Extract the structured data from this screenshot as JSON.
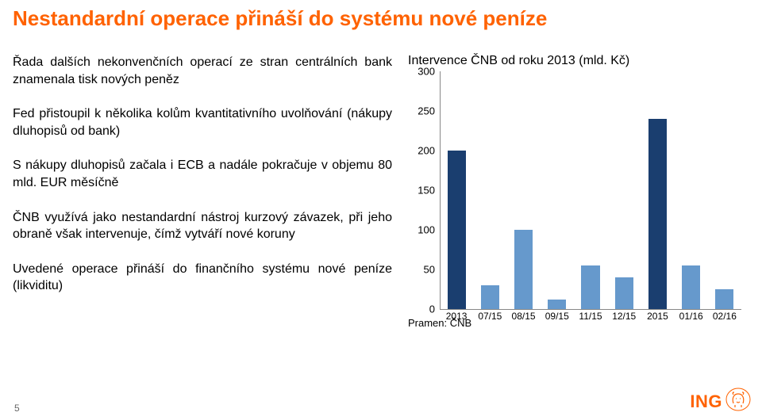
{
  "title": {
    "text": "Nestandardní operace přináší do systému nové peníze",
    "color": "#ff6200"
  },
  "body": {
    "p1": "Řada dalších nekonvenčních operací ze stran centrálních bank znamenala tisk nových peněz",
    "p2": "Fed přistoupil k několika kolům kvantitativního uvolňování (nákupy dluhopisů od bank)",
    "p3": "S nákupy dluhopisů začala i ECB a nadále pokračuje v objemu 80 mld. EUR měsíčně",
    "p4": "ČNB využívá jako nestandardní nástroj kurzový závazek, při jeho obraně však intervenuje, čímž vytváří nové koruny",
    "p5": "Uvedené operace přináší do finančního systému nové peníze (likviditu)",
    "text_color": "#000000"
  },
  "chart": {
    "title": "Intervence ČNB od roku 2013 (mld. Kč)",
    "type": "bar",
    "categories": [
      "2013",
      "07/15",
      "08/15",
      "09/15",
      "11/15",
      "12/15",
      "2015",
      "01/16",
      "02/16"
    ],
    "values": [
      200,
      30,
      100,
      12,
      55,
      40,
      240,
      55,
      25
    ],
    "bar_colors": [
      "#1a3e6f",
      "#6699cc",
      "#6699cc",
      "#6699cc",
      "#6699cc",
      "#6699cc",
      "#1a3e6f",
      "#6699cc",
      "#6699cc"
    ],
    "ylim": [
      0,
      300
    ],
    "ytick_step": 50,
    "background_color": "#ffffff",
    "axis_color": "#888888",
    "label_fontsize": 13,
    "bar_width_ratio": 0.55,
    "source": "Pramen: ČNB"
  },
  "page": {
    "number": "5"
  },
  "logo": {
    "text": "ING",
    "text_color": "#ff6200",
    "lion_color": "#ff6200"
  }
}
